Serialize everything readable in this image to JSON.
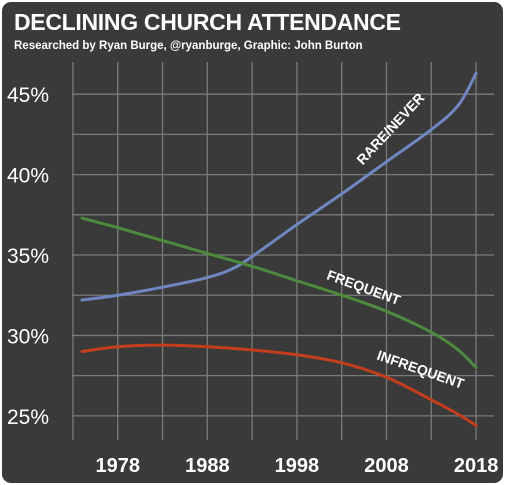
{
  "header": {
    "title": "DECLINING CHURCH ATTENDANCE",
    "subtitle": "Researched by Ryan Burge, @ryanburge, Graphic: John Burton"
  },
  "colors": {
    "background": "#3a3a3a",
    "grid": "#7a7a7a",
    "rare_never": "#6f86c0",
    "frequent": "#4e8a3e",
    "infrequent": "#c43d1c",
    "text": "#ffffff"
  },
  "chart_data": {
    "type": "line",
    "title": "DECLINING CHURCH ATTENDANCE",
    "subtitle": "Researched by Ryan Burge, @ryanburge, Graphic: John Burton",
    "xlabel": "",
    "ylabel": "",
    "xlim": [
      1972,
      2020
    ],
    "ylim": [
      23.5,
      47
    ],
    "x_ticks": [
      1978,
      1988,
      1998,
      2008,
      2018
    ],
    "y_ticks": [
      25,
      30,
      35,
      40,
      45
    ],
    "y_tick_labels": [
      "25%",
      "30%",
      "35%",
      "40%",
      "45%"
    ],
    "grid": true,
    "legend": "none (labels placed on lines)",
    "series": [
      {
        "name": "RARE/NEVER",
        "color": "#6f86c0",
        "x": [
          1974,
          1978,
          1983,
          1988,
          1991,
          1994,
          1998,
          2003,
          2008,
          2013,
          2016,
          2018
        ],
        "y": [
          32.2,
          32.5,
          33.0,
          33.6,
          34.2,
          35.3,
          36.9,
          38.8,
          40.8,
          42.8,
          44.3,
          46.3
        ]
      },
      {
        "name": "FREQUENT",
        "color": "#4e8a3e",
        "x": [
          1974,
          1978,
          1983,
          1988,
          1993,
          1998,
          2003,
          2008,
          2013,
          2016,
          2018
        ],
        "y": [
          37.3,
          36.7,
          35.9,
          35.1,
          34.3,
          33.4,
          32.5,
          31.5,
          30.2,
          29.1,
          28.0
        ]
      },
      {
        "name": "INFREQUENT",
        "color": "#c43d1c",
        "x": [
          1974,
          1978,
          1983,
          1988,
          1993,
          1998,
          2003,
          2008,
          2013,
          2016,
          2018
        ],
        "y": [
          29.0,
          29.3,
          29.4,
          29.3,
          29.1,
          28.8,
          28.3,
          27.4,
          26.0,
          25.1,
          24.4
        ]
      }
    ]
  }
}
